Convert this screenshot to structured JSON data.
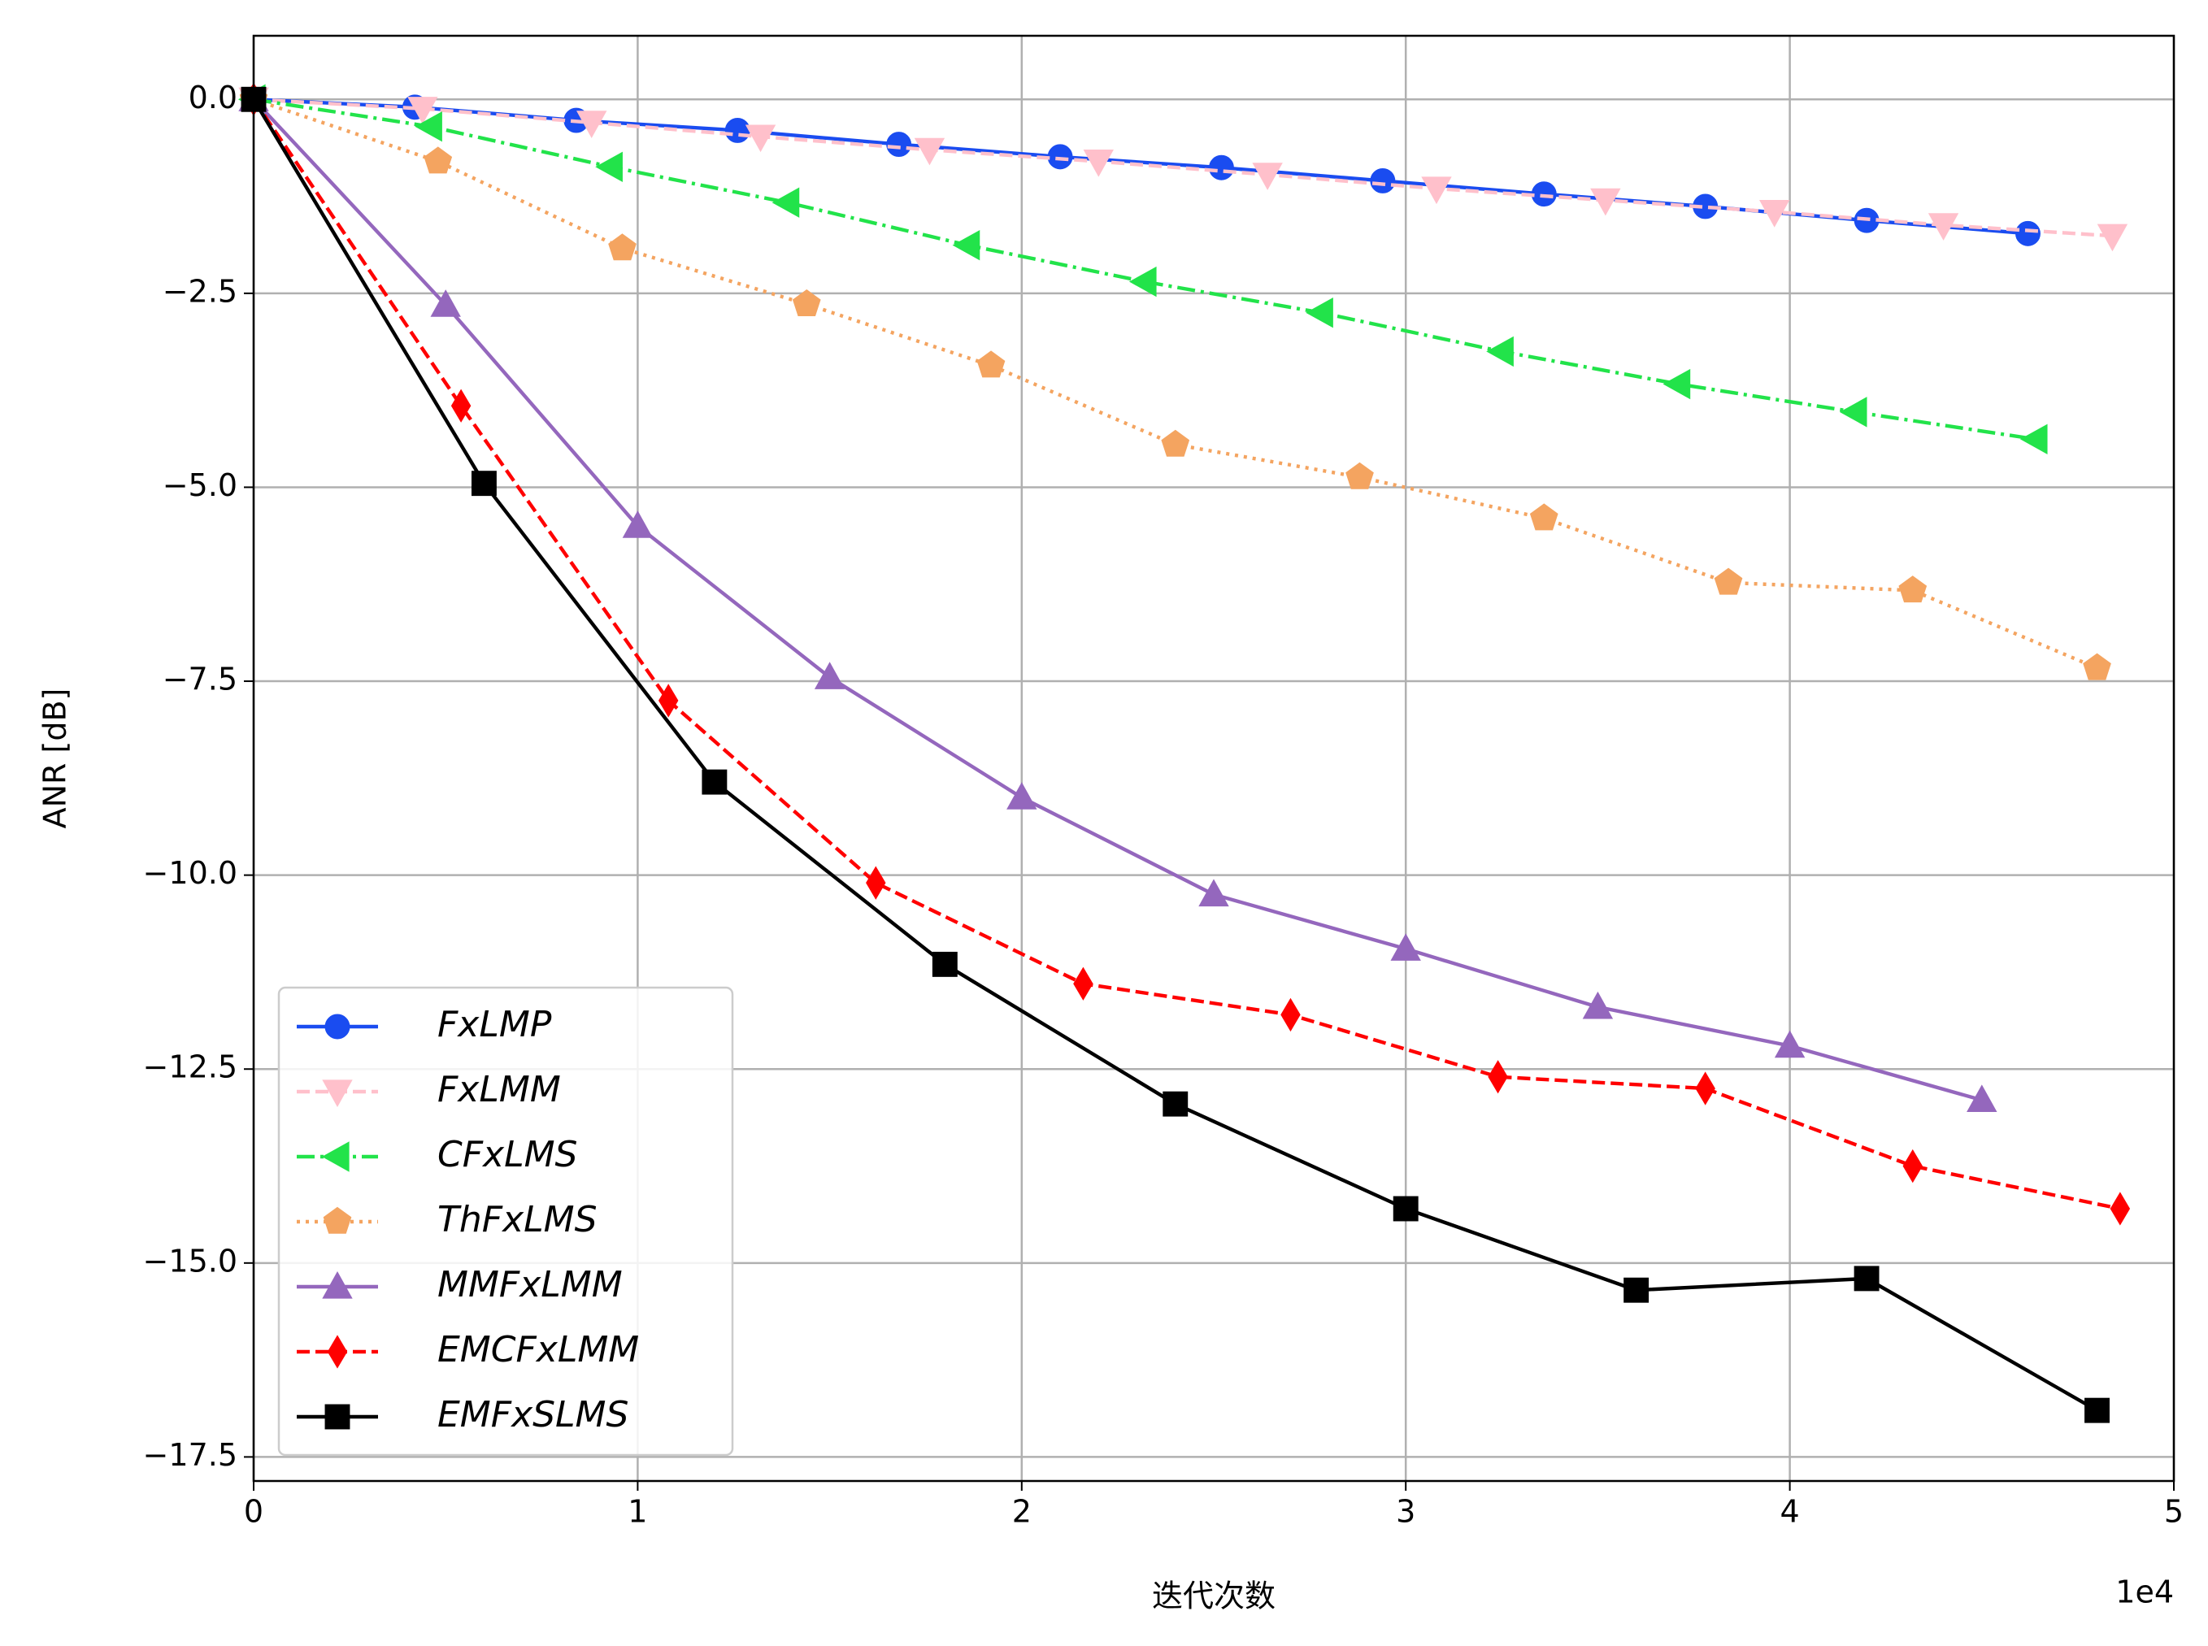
{
  "chart_data": {
    "type": "line",
    "x_label": "迭代次数",
    "y_label": "ANR [dB]",
    "x_offset_label": "1e4",
    "xlim": [
      0,
      5
    ],
    "ylim": [
      -17.81,
      0.82
    ],
    "xticks": [
      0,
      1,
      2,
      3,
      4,
      5
    ],
    "yticks": [
      {
        "value": 0,
        "label": "0.0"
      },
      {
        "value": -2.5,
        "label": "−2.5"
      },
      {
        "value": -5,
        "label": "−5.0"
      },
      {
        "value": -7.5,
        "label": "−7.5"
      },
      {
        "value": -10,
        "label": "−10.0"
      },
      {
        "value": -12.5,
        "label": "−12.5"
      },
      {
        "value": -15,
        "label": "−15.0"
      },
      {
        "value": -17.5,
        "label": "−17.5"
      }
    ],
    "grid": true,
    "legend": "lower left",
    "series": [
      {
        "name": "FxLMP",
        "color": "#1a4cf0",
        "linestyle": "solid",
        "marker": "circle",
        "x": [
          0,
          0.42,
          0.84,
          1.26,
          1.68,
          2.1,
          2.52,
          2.94,
          3.36,
          3.78,
          4.2,
          4.62
        ],
        "values": [
          0,
          -0.1,
          -0.27,
          -0.4,
          -0.58,
          -0.74,
          -0.88,
          -1.05,
          -1.22,
          -1.38,
          -1.56,
          -1.73
        ]
      },
      {
        "name": "FxLMM",
        "color": "#ffc0cb",
        "linestyle": "dashed",
        "marker": "triangle-down",
        "x": [
          0,
          0.44,
          0.88,
          1.32,
          1.76,
          2.2,
          2.64,
          3.08,
          3.52,
          3.96,
          4.4,
          4.84
        ],
        "values": [
          0,
          -0.12,
          -0.3,
          -0.48,
          -0.65,
          -0.8,
          -0.97,
          -1.15,
          -1.3,
          -1.45,
          -1.62,
          -1.76
        ]
      },
      {
        "name": "CFxLMS",
        "color": "#22e34a",
        "linestyle": "dashdot",
        "marker": "triangle-left",
        "x": [
          0,
          0.46,
          0.93,
          1.39,
          1.86,
          2.32,
          2.78,
          3.25,
          3.71,
          4.17,
          4.64
        ],
        "values": [
          0,
          -0.35,
          -0.87,
          -1.33,
          -1.88,
          -2.35,
          -2.75,
          -3.25,
          -3.67,
          -4.03,
          -4.38
        ]
      },
      {
        "name": "ThFxLMS",
        "color": "#f4a460",
        "linestyle": "dotted",
        "marker": "pentagon",
        "x": [
          0,
          0.48,
          0.96,
          1.44,
          1.92,
          2.4,
          2.88,
          3.36,
          3.84,
          4.32,
          4.8
        ],
        "values": [
          0,
          -0.8,
          -1.92,
          -2.64,
          -3.43,
          -4.45,
          -4.87,
          -5.4,
          -6.23,
          -6.33,
          -7.33
        ]
      },
      {
        "name": "MMFxLMM",
        "color": "#9467bd",
        "linestyle": "solid",
        "marker": "triangle-up",
        "x": [
          0,
          0.5,
          1,
          1.5,
          2,
          2.5,
          3,
          3.5,
          4,
          4.5
        ],
        "values": [
          0,
          -2.65,
          -5.5,
          -7.45,
          -9,
          -10.25,
          -10.95,
          -11.7,
          -12.2,
          -12.9
        ]
      },
      {
        "name": "EMCFxLMM",
        "color": "#ff0000",
        "linestyle": "dashed",
        "marker": "diamond",
        "x": [
          0,
          0.54,
          1.08,
          1.62,
          2.16,
          2.7,
          3.24,
          3.78,
          4.32,
          4.86
        ],
        "values": [
          0,
          -3.95,
          -7.75,
          -10.1,
          -11.4,
          -11.8,
          -12.6,
          -12.75,
          -13.75,
          -14.3
        ]
      },
      {
        "name": "EMFxSLMS",
        "color": "#000000",
        "linestyle": "solid",
        "marker": "square",
        "x": [
          0,
          0.6,
          1.2,
          1.8,
          2.4,
          3,
          3.6,
          4.2,
          4.8
        ],
        "values": [
          0,
          -4.95,
          -8.8,
          -11.15,
          -12.95,
          -14.3,
          -15.35,
          -15.2,
          -16.9
        ]
      }
    ]
  }
}
